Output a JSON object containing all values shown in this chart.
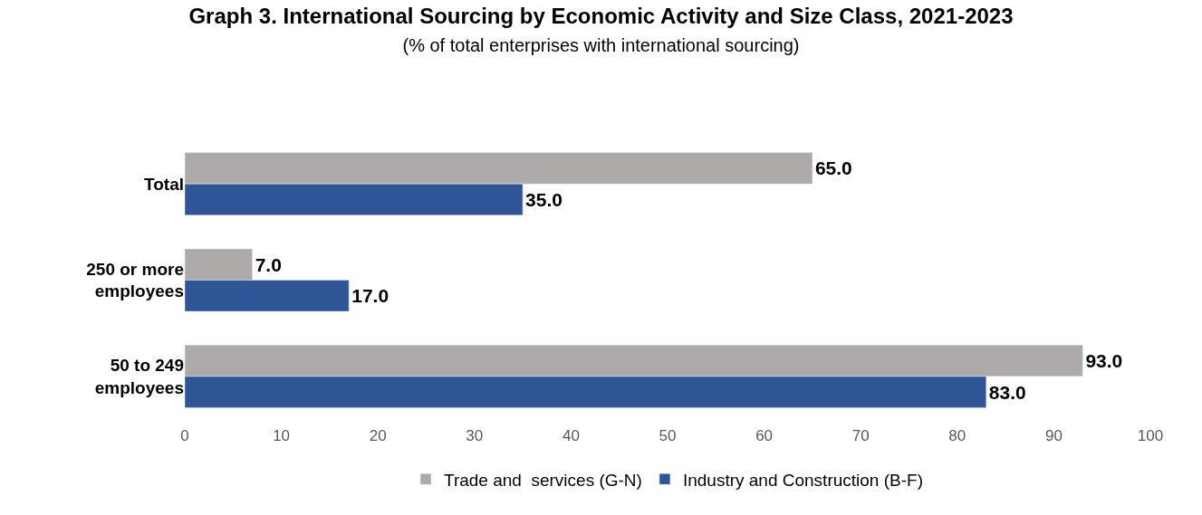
{
  "chart_data": {
    "type": "bar",
    "orientation": "horizontal",
    "title": "Graph 3. International Sourcing by Economic Activity and Size Class, 2021-2023",
    "subtitle": "(% of total enterprises with international sourcing)",
    "categories": [
      "Total",
      "250 or more employees",
      "50 to 249 employees"
    ],
    "series": [
      {
        "name": "Trade and  services (G-N)",
        "color": "#aeaaaa",
        "values": [
          65.0,
          7.0,
          93.0
        ],
        "value_labels": [
          "65.0",
          "7.0",
          "93.0"
        ]
      },
      {
        "name": "Industry and Construction (B-F)",
        "color": "#2f5597",
        "values": [
          35.0,
          17.0,
          83.0
        ],
        "value_labels": [
          "35.0",
          "17.0",
          "83.0"
        ]
      }
    ],
    "xlim": [
      0,
      100
    ],
    "xticks": [
      0,
      10,
      20,
      30,
      40,
      50,
      60,
      70,
      80,
      90,
      100
    ],
    "legend": "bottom"
  }
}
